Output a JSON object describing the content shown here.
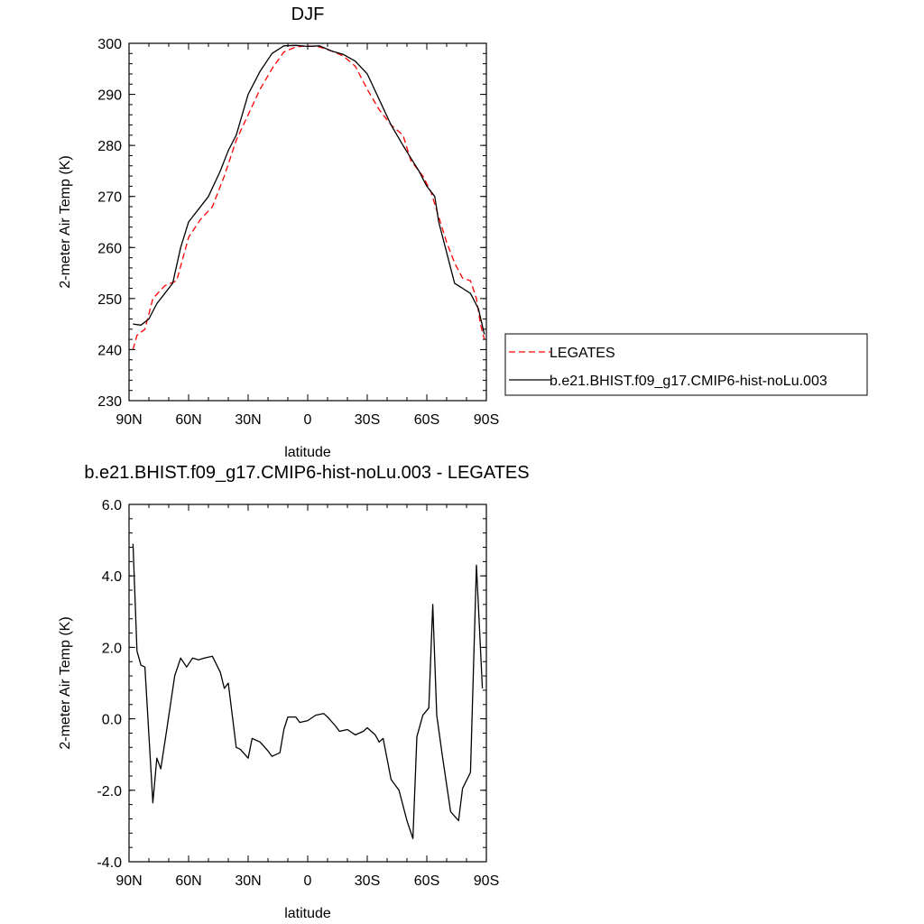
{
  "chart_data": [
    {
      "type": "line",
      "title": "DJF",
      "xlabel": "latitude",
      "ylabel": "2-meter Air Temp (K)",
      "xlim": [
        90,
        -90
      ],
      "ylim": [
        230,
        300
      ],
      "xticks": [
        90,
        60,
        30,
        0,
        -30,
        -60,
        -90
      ],
      "xtick_labels": [
        "90N",
        "60N",
        "30N",
        "0",
        "30S",
        "60S",
        "90S"
      ],
      "yticks": [
        230,
        240,
        250,
        260,
        270,
        280,
        290,
        300
      ],
      "ytick_labels": [
        "230",
        "240",
        "250",
        "260",
        "270",
        "280",
        "290",
        "300"
      ],
      "legend_position": "right",
      "series": [
        {
          "name": "LEGATES",
          "color": "#ff0000",
          "dash": "dashed",
          "x": [
            88,
            86,
            82,
            78,
            72,
            66,
            60,
            54,
            48,
            42,
            36,
            30,
            24,
            18,
            12,
            6,
            0,
            -6,
            -12,
            -18,
            -24,
            -30,
            -36,
            -42,
            -48,
            -52,
            -58,
            -62,
            -66,
            -70,
            -74,
            -78,
            -82,
            -85,
            -87,
            -89
          ],
          "y": [
            240,
            242.8,
            244,
            250,
            252.5,
            253.5,
            262,
            265.5,
            268,
            274,
            281,
            286,
            291,
            295,
            298.3,
            299.3,
            299.5,
            299.3,
            298.5,
            297.5,
            295.5,
            291,
            287,
            284,
            282,
            277,
            274,
            271,
            266,
            261,
            257,
            254,
            253.5,
            250,
            245,
            242
          ]
        },
        {
          "name": "b.e21.BHIST.f09_g17.CMIP6-hist-noLu.003",
          "color": "#000000",
          "dash": "solid",
          "x": [
            88,
            84,
            80,
            76,
            72,
            68,
            64,
            60,
            56,
            50,
            44,
            40,
            36,
            30,
            24,
            18,
            12,
            6,
            0,
            -6,
            -12,
            -18,
            -24,
            -30,
            -36,
            -42,
            -48,
            -52,
            -56,
            -60,
            -64,
            -66,
            -70,
            -74,
            -78,
            -82,
            -86,
            -89
          ],
          "y": [
            245,
            244.8,
            246,
            249,
            251,
            253,
            260,
            265,
            267,
            270,
            275,
            279,
            282,
            290,
            294.5,
            298,
            299.5,
            299.6,
            299.4,
            299.5,
            298.5,
            297.8,
            296.5,
            294,
            289,
            284,
            280,
            277.5,
            275,
            272,
            270,
            265,
            259,
            253,
            252,
            251,
            248,
            243
          ]
        }
      ]
    },
    {
      "type": "line",
      "title": "b.e21.BHIST.f09_g17.CMIP6-hist-noLu.003 - LEGATES",
      "xlabel": "latitude",
      "ylabel": "2-meter Air Temp (K)",
      "xlim": [
        90,
        -90
      ],
      "ylim": [
        -4,
        6
      ],
      "xticks": [
        90,
        60,
        30,
        0,
        -30,
        -60,
        -90
      ],
      "xtick_labels": [
        "90N",
        "60N",
        "30N",
        "0",
        "30S",
        "60S",
        "90S"
      ],
      "yticks": [
        -4,
        -2,
        0,
        2,
        4,
        6
      ],
      "ytick_labels": [
        "-4.0",
        "-2.0",
        "0.0",
        "2.0",
        "4.0",
        "6.0"
      ],
      "series": [
        {
          "color": "#000000",
          "dash": "solid",
          "x": [
            88,
            86,
            84,
            82,
            78,
            76,
            74,
            71,
            67,
            64,
            61,
            58,
            55,
            52,
            48,
            44,
            42,
            40,
            36,
            34,
            30,
            28,
            24,
            20,
            18,
            14,
            12,
            10,
            6,
            4,
            0,
            -4,
            -8,
            -10,
            -14,
            -16,
            -20,
            -24,
            -28,
            -30,
            -34,
            -36,
            -38,
            -42,
            -46,
            -50,
            -53,
            -55,
            -58,
            -61,
            -63,
            -65,
            -68,
            -72,
            -76,
            -78,
            -82,
            -85,
            -88
          ],
          "y": [
            4.9,
            1.9,
            1.5,
            1.45,
            -2.35,
            -1.1,
            -1.4,
            -0.3,
            1.2,
            1.7,
            1.45,
            1.7,
            1.65,
            1.7,
            1.75,
            1.3,
            0.85,
            1.0,
            -0.8,
            -0.85,
            -1.1,
            -0.55,
            -0.65,
            -0.9,
            -1.05,
            -0.95,
            -0.3,
            0.05,
            0.05,
            -0.1,
            -0.05,
            0.1,
            0.15,
            0.05,
            -0.2,
            -0.35,
            -0.3,
            -0.45,
            -0.35,
            -0.25,
            -0.45,
            -0.65,
            -0.55,
            -1.7,
            -2.0,
            -2.85,
            -3.35,
            -0.5,
            0.1,
            0.3,
            3.2,
            0.1,
            -1.1,
            -2.6,
            -2.85,
            -1.95,
            -1.5,
            4.3,
            0.85
          ]
        }
      ]
    }
  ],
  "legend": {
    "entries": [
      "LEGATES",
      "b.e21.BHIST.f09_g17.CMIP6-hist-noLu.003"
    ]
  }
}
